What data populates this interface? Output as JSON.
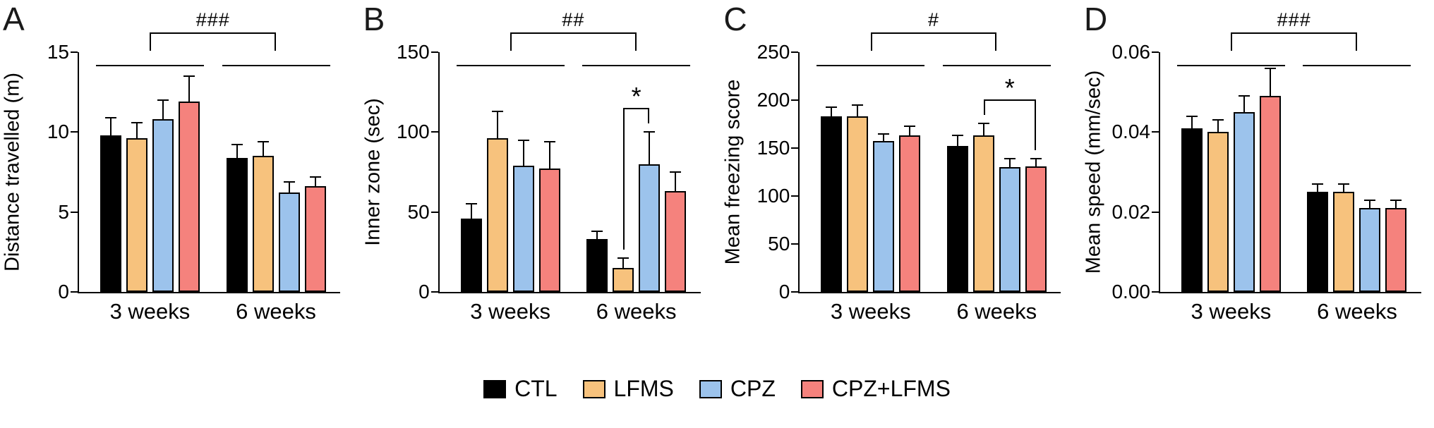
{
  "figure": {
    "background": "#ffffff"
  },
  "legend": {
    "items": [
      {
        "label": "CTL",
        "color": "#000000"
      },
      {
        "label": "LFMS",
        "color": "#F7C27D"
      },
      {
        "label": "CPZ",
        "color": "#9CC3EC"
      },
      {
        "label": "CPZ+LFMS",
        "color": "#F5827D"
      }
    ]
  },
  "chart_data": [
    {
      "panel_label": "A",
      "type": "bar",
      "ylabel": "Distance travelled (m)",
      "ylim": [
        0,
        15
      ],
      "yticks": [
        0,
        5,
        10,
        15
      ],
      "ytick_labels": [
        "0",
        "5",
        "10",
        "15"
      ],
      "categories": [
        "3 weeks",
        "6 weeks"
      ],
      "series": [
        {
          "name": "CTL",
          "color": "#000000",
          "values": [
            9.8,
            8.4
          ],
          "errors": [
            1.1,
            0.8
          ]
        },
        {
          "name": "LFMS",
          "color": "#F7C27D",
          "values": [
            9.6,
            8.5
          ],
          "errors": [
            1.0,
            0.9
          ]
        },
        {
          "name": "CPZ",
          "color": "#9CC3EC",
          "values": [
            10.8,
            6.2
          ],
          "errors": [
            1.2,
            0.7
          ]
        },
        {
          "name": "CPZ+LFMS",
          "color": "#F5827D",
          "values": [
            11.9,
            6.6
          ],
          "errors": [
            1.6,
            0.6
          ]
        }
      ],
      "significance": {
        "group_comparison_label": "###",
        "pairwise": []
      }
    },
    {
      "panel_label": "B",
      "type": "bar",
      "ylabel": "Inner zone (sec)",
      "ylim": [
        0,
        150
      ],
      "yticks": [
        0,
        50,
        100,
        150
      ],
      "ytick_labels": [
        "0",
        "50",
        "100",
        "150"
      ],
      "categories": [
        "3 weeks",
        "6 weeks"
      ],
      "series": [
        {
          "name": "CTL",
          "color": "#000000",
          "values": [
            46,
            33
          ],
          "errors": [
            9,
            5
          ]
        },
        {
          "name": "LFMS",
          "color": "#F7C27D",
          "values": [
            96,
            15
          ],
          "errors": [
            17,
            6
          ]
        },
        {
          "name": "CPZ",
          "color": "#9CC3EC",
          "values": [
            79,
            80
          ],
          "errors": [
            16,
            20
          ]
        },
        {
          "name": "CPZ+LFMS",
          "color": "#F5827D",
          "values": [
            77,
            63
          ],
          "errors": [
            17,
            12
          ]
        }
      ],
      "significance": {
        "group_comparison_label": "##",
        "pairwise": [
          {
            "category_index": 1,
            "from_series": 1,
            "to_series": 2,
            "label": "*"
          }
        ]
      }
    },
    {
      "panel_label": "C",
      "type": "bar",
      "ylabel": "Mean freezing score",
      "ylim": [
        0,
        250
      ],
      "yticks": [
        0,
        50,
        100,
        150,
        200,
        250
      ],
      "ytick_labels": [
        "0",
        "50",
        "100",
        "150",
        "200",
        "250"
      ],
      "categories": [
        "3 weeks",
        "6 weeks"
      ],
      "series": [
        {
          "name": "CTL",
          "color": "#000000",
          "values": [
            183,
            152
          ],
          "errors": [
            10,
            11
          ]
        },
        {
          "name": "LFMS",
          "color": "#F7C27D",
          "values": [
            183,
            163
          ],
          "errors": [
            12,
            13
          ]
        },
        {
          "name": "CPZ",
          "color": "#9CC3EC",
          "values": [
            157,
            130
          ],
          "errors": [
            8,
            9
          ]
        },
        {
          "name": "CPZ+LFMS",
          "color": "#F5827D",
          "values": [
            163,
            131
          ],
          "errors": [
            10,
            8
          ]
        }
      ],
      "significance": {
        "group_comparison_label": "#",
        "pairwise": [
          {
            "category_index": 1,
            "from_series": 1,
            "to_series": 3,
            "label": "*"
          }
        ]
      }
    },
    {
      "panel_label": "D",
      "type": "bar",
      "ylabel": "Mean speed (mm/sec)",
      "ylim": [
        0,
        0.06
      ],
      "yticks": [
        0,
        0.02,
        0.04,
        0.06
      ],
      "ytick_labels": [
        "0.00",
        "0.02",
        "0.04",
        "0.06"
      ],
      "categories": [
        "3 weeks",
        "6 weeks"
      ],
      "series": [
        {
          "name": "CTL",
          "color": "#000000",
          "values": [
            0.041,
            0.025
          ],
          "errors": [
            0.003,
            0.002
          ]
        },
        {
          "name": "LFMS",
          "color": "#F7C27D",
          "values": [
            0.04,
            0.025
          ],
          "errors": [
            0.003,
            0.002
          ]
        },
        {
          "name": "CPZ",
          "color": "#9CC3EC",
          "values": [
            0.045,
            0.021
          ],
          "errors": [
            0.004,
            0.002
          ]
        },
        {
          "name": "CPZ+LFMS",
          "color": "#F5827D",
          "values": [
            0.049,
            0.021
          ],
          "errors": [
            0.007,
            0.002
          ]
        }
      ],
      "significance": {
        "group_comparison_label": "###",
        "pairwise": []
      }
    }
  ]
}
